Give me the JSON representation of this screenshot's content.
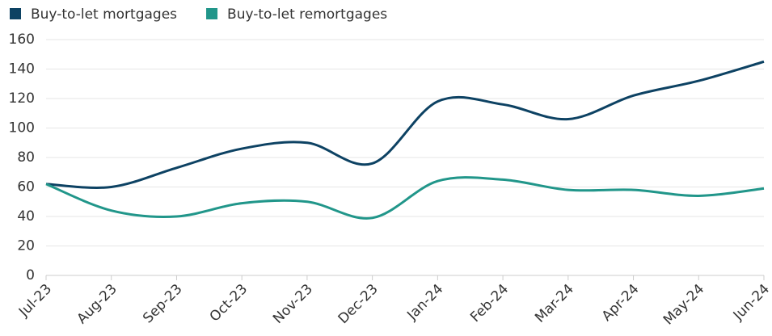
{
  "chart_data": {
    "type": "line",
    "categories": [
      "Jul-23",
      "Aug-23",
      "Sep-23",
      "Oct-23",
      "Nov-23",
      "Dec-23",
      "Jan-24",
      "Feb-24",
      "Mar-24",
      "Apr-24",
      "May-24",
      "Jun-24"
    ],
    "series": [
      {
        "name": "Buy-to-let mortgages",
        "color": "#0d4263",
        "values": [
          62,
          60,
          73,
          86,
          90,
          76,
          118,
          116,
          106,
          122,
          132,
          145
        ]
      },
      {
        "name": "Buy-to-let remortgages",
        "color": "#21968a",
        "values": [
          62,
          44,
          40,
          49,
          50,
          39,
          64,
          65,
          58,
          58,
          54,
          59
        ]
      }
    ],
    "ylim": [
      0,
      160
    ],
    "yticks": [
      0,
      20,
      40,
      60,
      80,
      100,
      120,
      140,
      160
    ],
    "grid": true,
    "legend": "top-left"
  }
}
